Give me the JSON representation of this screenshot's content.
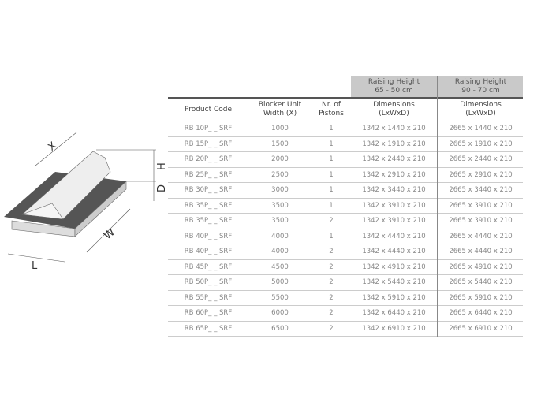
{
  "diagram": {
    "labels": [
      "X",
      "H",
      "D",
      "W",
      "L"
    ]
  },
  "table": {
    "group_headers": [
      {
        "label": "Raising Height\n65 - 50 cm"
      },
      {
        "label": "Raising Height\n90 - 70 cm"
      }
    ],
    "group1_line1": "Raising Height",
    "group1_line2": "65 - 50 cm",
    "group2_line1": "Raising Height",
    "group2_line2": "90 - 70 cm",
    "columns": [
      [
        "Product Code",
        ""
      ],
      [
        "Blocker Unit",
        "Width (X)"
      ],
      [
        "Nr. of",
        "Pistons"
      ],
      [
        "Dimensions",
        "(LxWxD)"
      ],
      [
        "Dimensions",
        "(LxWxD)"
      ]
    ],
    "rows": [
      [
        "RB 10P_ _ SRF",
        "1000",
        "1",
        "1342 x 1440 x 210",
        "2665 x 1440 x 210"
      ],
      [
        "RB 15P_ _ SRF",
        "1500",
        "1",
        "1342 x 1910 x 210",
        "2665 x 1910 x 210"
      ],
      [
        "RB 20P_ _ SRF",
        "2000",
        "1",
        "1342 x 2440 x 210",
        "2665 x 2440 x 210"
      ],
      [
        "RB 25P_ _ SRF",
        "2500",
        "1",
        "1342 x 2910 x 210",
        "2665 x 2910 x 210"
      ],
      [
        "RB 30P_ _ SRF",
        "3000",
        "1",
        "1342 x 3440 x 210",
        "2665 x 3440 x 210"
      ],
      [
        "RB 35P_ _ SRF",
        "3500",
        "1",
        "1342 x 3910 x 210",
        "2665 x 3910 x 210"
      ],
      [
        "RB 35P_ _ SRF",
        "3500",
        "2",
        "1342 x 3910 x 210",
        "2665 x 3910 x 210"
      ],
      [
        "RB 40P_ _ SRF",
        "4000",
        "1",
        "1342 x 4440 x 210",
        "2665 x 4440 x 210"
      ],
      [
        "RB 40P_ _ SRF",
        "4000",
        "2",
        "1342 x 4440 x 210",
        "2665 x 4440 x 210"
      ],
      [
        "RB 45P_ _ SRF",
        "4500",
        "2",
        "1342 x 4910 x 210",
        "2665 x 4910 x 210"
      ],
      [
        "RB 50P_ _ SRF",
        "5000",
        "2",
        "1342 x 5440 x 210",
        "2665 x 5440 x 210"
      ],
      [
        "RB 55P_ _ SRF",
        "5500",
        "2",
        "1342 x 5910 x 210",
        "2665 x 5910 x 210"
      ],
      [
        "RB 60P_ _ SRF",
        "6000",
        "2",
        "1342 x 6440 x 210",
        "2665 x 6440 x 210"
      ],
      [
        "RB 65P_ _ SRF",
        "6500",
        "2",
        "1342 x 6910 x 210",
        "2665 x 6910 x 210"
      ]
    ]
  }
}
